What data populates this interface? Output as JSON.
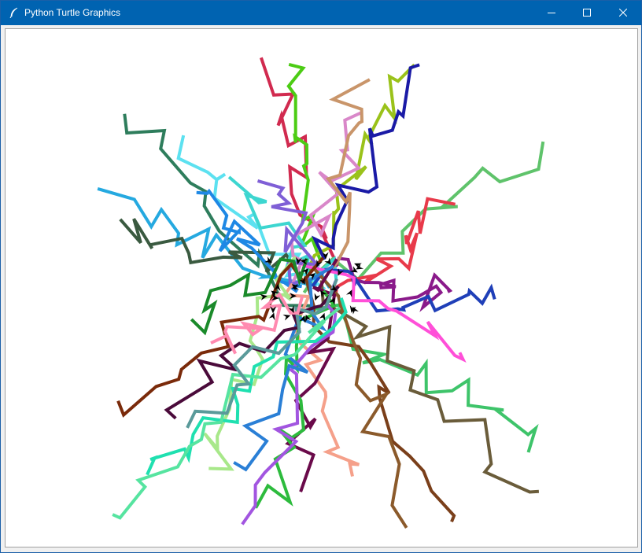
{
  "window": {
    "title": "Python Turtle Graphics",
    "icons": {
      "app": "feather-icon",
      "minimize": "minimize-icon",
      "maximize": "maximize-icon",
      "close": "close-icon"
    },
    "colors": {
      "titlebar": "#0063b1",
      "title_text": "#ffffff",
      "canvas_bg": "#ffffff"
    }
  },
  "canvas": {
    "content": "random walk trails of many colored turtles radiating from the center",
    "turtle_cursor_color": "#000000",
    "trail_colors": [
      "#d12a4f",
      "#4ccc14",
      "#9ac21a",
      "#1a1aa6",
      "#5fc36b",
      "#2e7d5c",
      "#5ce1f0",
      "#25a9e0",
      "#3a5a40",
      "#1e88e5",
      "#3dd6d0",
      "#d987c9",
      "#7f5fd6",
      "#e83a4a",
      "#8a1a8a",
      "#1f3fb8",
      "#c9956a",
      "#ff4fd8",
      "#3ec46a",
      "#6a5c3a",
      "#7a3f1a",
      "#8b5a2b",
      "#f5a08a",
      "#6a0a4a",
      "#2dbb3d",
      "#a255e0",
      "#2a7fd6",
      "#a8e88a",
      "#1fe0b0",
      "#56e4a0",
      "#7a2a0a",
      "#4a0a3a",
      "#5a9a9a",
      "#1a8a2a",
      "#ff8ab0"
    ]
  }
}
